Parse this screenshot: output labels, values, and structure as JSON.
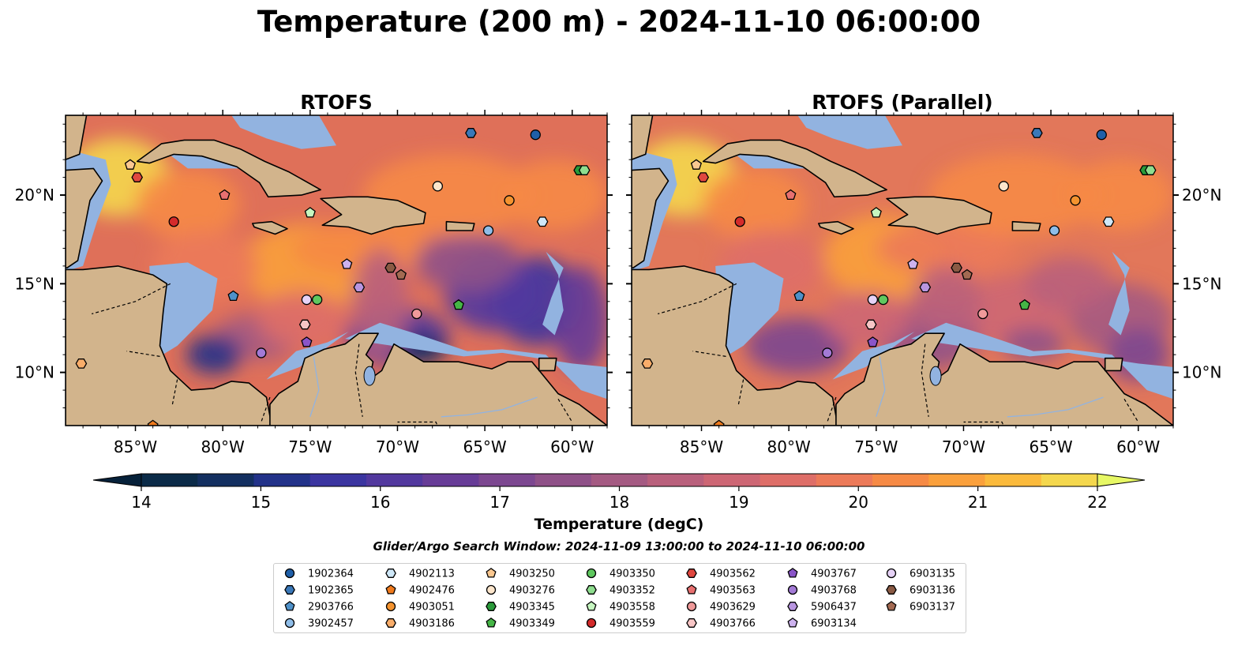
{
  "title": "Temperature (200 m) - 2024-11-10 06:00:00",
  "chart_data": {
    "type": "contourf-map",
    "panels": [
      {
        "title": "RTOFS"
      },
      {
        "title": "RTOFS (Parallel)"
      }
    ],
    "lon_range": [
      -89,
      -58
    ],
    "lat_range": [
      7,
      24.5
    ],
    "lon_ticks": [
      {
        "v": -85,
        "label": "85°W"
      },
      {
        "v": -80,
        "label": "80°W"
      },
      {
        "v": -75,
        "label": "75°W"
      },
      {
        "v": -70,
        "label": "70°W"
      },
      {
        "v": -65,
        "label": "65°W"
      },
      {
        "v": -60,
        "label": "60°W"
      }
    ],
    "lat_ticks": [
      {
        "v": 20,
        "label": "20°N"
      },
      {
        "v": 15,
        "label": "15°N"
      },
      {
        "v": 10,
        "label": "10°N"
      }
    ],
    "colorbar": {
      "label": "Temperature (degC)",
      "min": 14,
      "max": 22,
      "step": 0.5,
      "ticks": [
        14,
        15,
        16,
        17,
        18,
        19,
        20,
        21,
        22
      ],
      "colors": [
        "#0b2b48",
        "#132f60",
        "#223289",
        "#3b35a0",
        "#52389e",
        "#673c97",
        "#7c4790",
        "#8f5188",
        "#a45a82",
        "#b9607c",
        "#cd6674",
        "#de6e68",
        "#ec7a59",
        "#f68a45",
        "#faa03c",
        "#fbba3c",
        "#f4d74d"
      ],
      "extend_low": "#06213a",
      "extend_high": "#e7f865"
    },
    "search_window": "Glider/Argo Search Window: 2024-11-09 13:00:00 to 2024-11-10 06:00:00",
    "floats": [
      {
        "id": "1902364",
        "marker": "circle",
        "color": "#1f5fa8",
        "lon": -62.1,
        "lat": 23.4
      },
      {
        "id": "1902365",
        "marker": "hexagon",
        "color": "#3a78b8",
        "lon": -65.8,
        "lat": 23.5
      },
      {
        "id": "2903766",
        "marker": "pentagon",
        "color": "#4f91c9",
        "lon": -79.4,
        "lat": 14.3
      },
      {
        "id": "3902457",
        "marker": "circle",
        "color": "#8fbde8",
        "lon": -64.8,
        "lat": 18.0
      },
      {
        "id": "4902113",
        "marker": "hexagon",
        "color": "#cfe8f8",
        "lon": -61.7,
        "lat": 18.5
      },
      {
        "id": "4902476",
        "marker": "pentagon",
        "color": "#f07a1c",
        "lon": -84.0,
        "lat": 7.0
      },
      {
        "id": "4903051",
        "marker": "circle",
        "color": "#f4932f",
        "lon": -63.6,
        "lat": 19.7
      },
      {
        "id": "4903186",
        "marker": "hexagon",
        "color": "#f9ad6a",
        "lon": -88.1,
        "lat": 10.5
      },
      {
        "id": "4903250",
        "marker": "pentagon",
        "color": "#fbc890",
        "lon": -85.3,
        "lat": 21.7
      },
      {
        "id": "4903276",
        "marker": "circle",
        "color": "#fde6cc",
        "lon": -67.7,
        "lat": 20.5
      },
      {
        "id": "4903345",
        "marker": "hexagon",
        "color": "#2a9a3a",
        "lon": -59.6,
        "lat": 21.4
      },
      {
        "id": "4903349",
        "marker": "pentagon",
        "color": "#45b546",
        "lon": -66.5,
        "lat": 13.8
      },
      {
        "id": "4903350",
        "marker": "circle",
        "color": "#5fc85f",
        "lon": -74.6,
        "lat": 14.1
      },
      {
        "id": "4903352",
        "marker": "hexagon",
        "color": "#8fde8f",
        "lon": -59.3,
        "lat": 21.4
      },
      {
        "id": "4903558",
        "marker": "pentagon",
        "color": "#c6f6c0",
        "lon": -75.0,
        "lat": 19.0
      },
      {
        "id": "4903559",
        "marker": "circle",
        "color": "#d42b2b",
        "lon": -82.8,
        "lat": 18.5
      },
      {
        "id": "4903562",
        "marker": "hexagon",
        "color": "#e0473f",
        "lon": -84.9,
        "lat": 21.0
      },
      {
        "id": "4903563",
        "marker": "pentagon",
        "color": "#e87070",
        "lon": -79.9,
        "lat": 20.0
      },
      {
        "id": "4903629",
        "marker": "circle",
        "color": "#f09a9a",
        "lon": -68.9,
        "lat": 13.3
      },
      {
        "id": "4903766",
        "marker": "hexagon",
        "color": "#f8c6c6",
        "lon": -75.3,
        "lat": 12.7
      },
      {
        "id": "4903767",
        "marker": "pentagon",
        "color": "#8a55c8",
        "lon": -75.2,
        "lat": 11.7
      },
      {
        "id": "4903768",
        "marker": "circle",
        "color": "#a37ad6",
        "lon": -77.8,
        "lat": 11.1
      },
      {
        "id": "5906437",
        "marker": "hexagon",
        "color": "#b895e0",
        "lon": -72.2,
        "lat": 14.8
      },
      {
        "id": "6903134",
        "marker": "pentagon",
        "color": "#cdb2ee",
        "lon": -72.9,
        "lat": 16.1
      },
      {
        "id": "6903135",
        "marker": "circle",
        "color": "#e6d2f6",
        "lon": -75.2,
        "lat": 14.1
      },
      {
        "id": "6903136",
        "marker": "hexagon",
        "color": "#8a5a44",
        "lon": -70.4,
        "lat": 15.9
      },
      {
        "id": "6903137",
        "marker": "pentagon",
        "color": "#a36a52",
        "lon": -69.8,
        "lat": 15.5
      }
    ]
  },
  "colors": {
    "land": "#d2b48c",
    "shelf": "#92b3e0",
    "deep": "#06213a",
    "cool_sea": "#4a36a0",
    "warm_sea": "#ec7a59"
  }
}
